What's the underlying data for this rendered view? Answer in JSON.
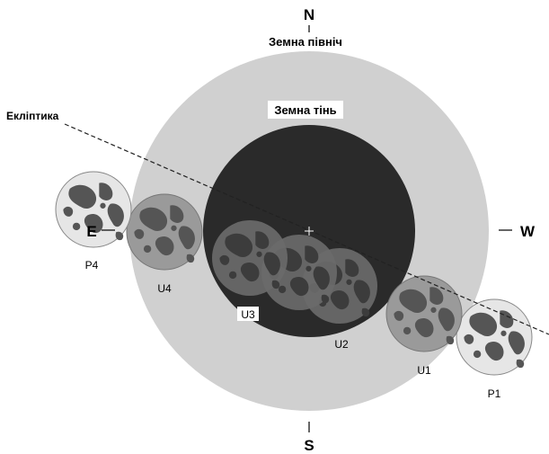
{
  "labels": {
    "north": "N",
    "south": "S",
    "east": "E",
    "west": "W",
    "north_caption": "Земна північ",
    "umbra_caption": "Земна тінь",
    "ecliptic": "Екліптика"
  },
  "contacts": {
    "P1": "P1",
    "U1": "U1",
    "U2": "U2",
    "U3": "U3",
    "U4": "U4",
    "P4": "P4"
  },
  "colors": {
    "penumbra": "#d0d0d0",
    "umbra": "#2a2a2a",
    "moon_light": "#e6e6e6",
    "moon_mid": "#9a9a9a",
    "moon_dark": "#6a6a6a",
    "maria": "#555555"
  }
}
